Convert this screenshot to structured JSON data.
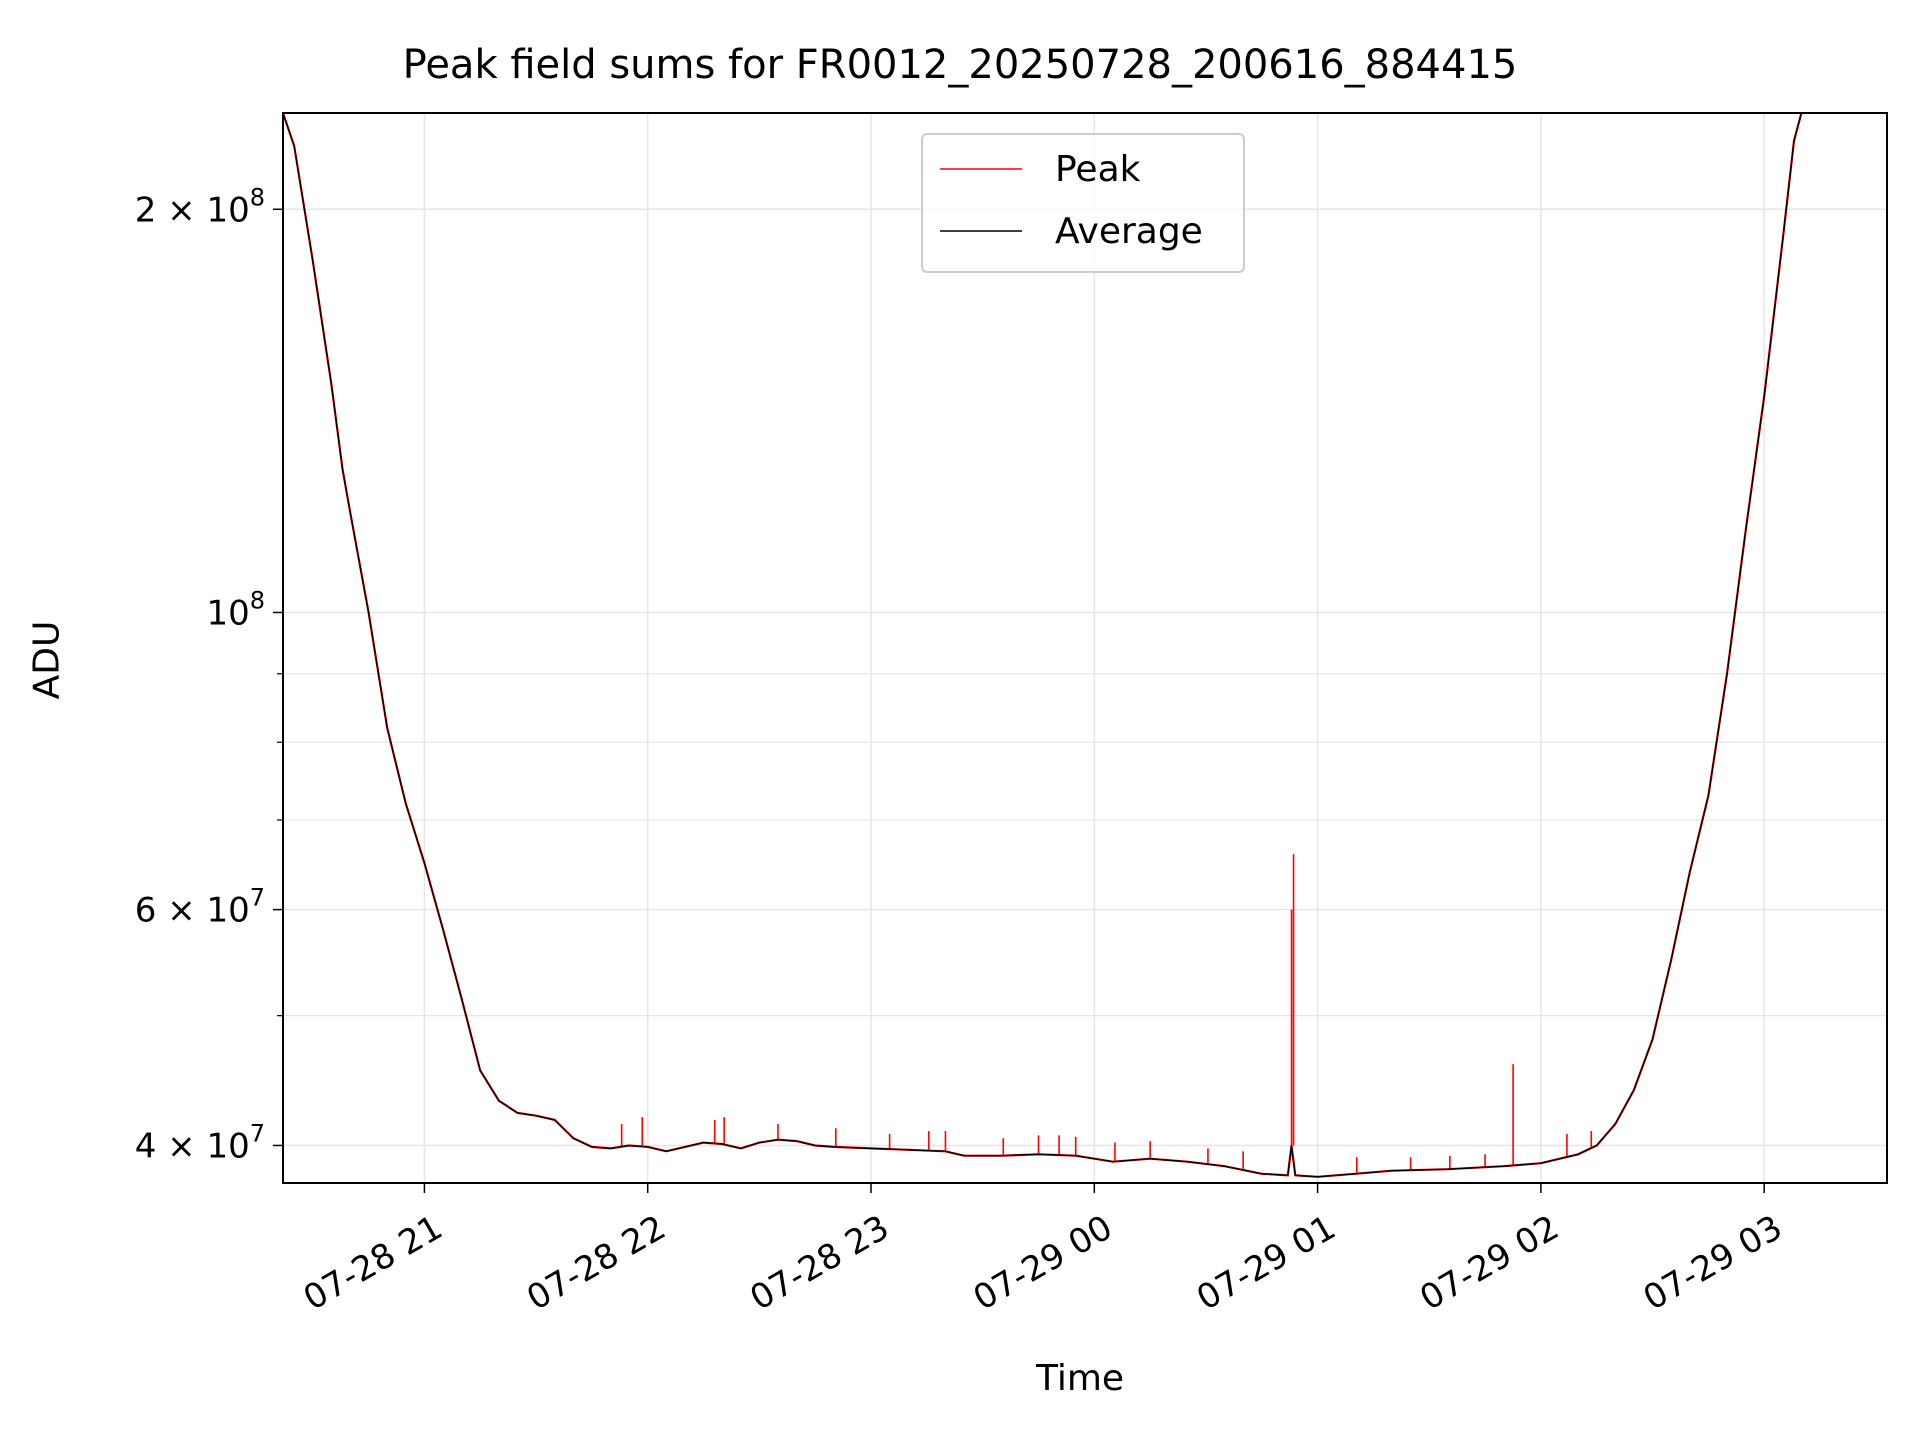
{
  "chart_data": {
    "type": "line",
    "title": "Peak field sums for FR0012_20250728_200616_884415",
    "xlabel": "Time",
    "ylabel": "ADU",
    "y_scale": "log",
    "grid": true,
    "legend_position": "top-center",
    "xlim": [
      "2025-07-28 20:22",
      "2025-07-29 03:33"
    ],
    "ylim": [
      37500000,
      236000000
    ],
    "x_ticks": [
      {
        "t": "2025-07-28 21:00",
        "label": "07-28 21"
      },
      {
        "t": "2025-07-28 22:00",
        "label": "07-28 22"
      },
      {
        "t": "2025-07-28 23:00",
        "label": "07-28 23"
      },
      {
        "t": "2025-07-29 00:00",
        "label": "07-29 00"
      },
      {
        "t": "2025-07-29 01:00",
        "label": "07-29 01"
      },
      {
        "t": "2025-07-29 02:00",
        "label": "07-29 02"
      },
      {
        "t": "2025-07-29 03:00",
        "label": "07-29 03"
      }
    ],
    "y_ticks": [
      {
        "value": 40000000,
        "label": "4 × 10",
        "exp": "7"
      },
      {
        "value": 60000000,
        "label": "6 × 10",
        "exp": "7"
      },
      {
        "value": 100000000,
        "label": "10",
        "exp": "8"
      },
      {
        "value": 200000000,
        "label": "2 × 10",
        "exp": "8"
      }
    ],
    "y_minor_ticks": [
      50000000,
      70000000,
      80000000,
      90000000
    ],
    "series": [
      {
        "name": "Average",
        "color": "#000000",
        "points": [
          [
            "2025-07-28 20:22",
            236000000
          ],
          [
            "2025-07-28 20:25",
            223000000
          ],
          [
            "2025-07-28 20:30",
            183000000
          ],
          [
            "2025-07-28 20:35",
            148000000
          ],
          [
            "2025-07-28 20:38",
            128000000
          ],
          [
            "2025-07-28 20:40",
            119000000
          ],
          [
            "2025-07-28 20:45",
            100000000
          ],
          [
            "2025-07-28 20:50",
            82000000
          ],
          [
            "2025-07-28 20:55",
            72000000
          ],
          [
            "2025-07-28 21:00",
            65000000
          ],
          [
            "2025-07-28 21:05",
            58000000
          ],
          [
            "2025-07-28 21:10",
            51500000
          ],
          [
            "2025-07-28 21:15",
            45500000
          ],
          [
            "2025-07-28 21:20",
            43200000
          ],
          [
            "2025-07-28 21:25",
            42300000
          ],
          [
            "2025-07-28 21:30",
            42100000
          ],
          [
            "2025-07-28 21:35",
            41800000
          ],
          [
            "2025-07-28 21:40",
            40500000
          ],
          [
            "2025-07-28 21:45",
            39900000
          ],
          [
            "2025-07-28 21:50",
            39800000
          ],
          [
            "2025-07-28 21:55",
            40000000
          ],
          [
            "2025-07-28 22:00",
            39900000
          ],
          [
            "2025-07-28 22:05",
            39600000
          ],
          [
            "2025-07-28 22:10",
            39900000
          ],
          [
            "2025-07-28 22:15",
            40200000
          ],
          [
            "2025-07-28 22:20",
            40100000
          ],
          [
            "2025-07-28 22:25",
            39800000
          ],
          [
            "2025-07-28 22:30",
            40200000
          ],
          [
            "2025-07-28 22:35",
            40400000
          ],
          [
            "2025-07-28 22:40",
            40300000
          ],
          [
            "2025-07-28 22:45",
            40000000
          ],
          [
            "2025-07-28 22:50",
            39900000
          ],
          [
            "2025-07-28 23:00",
            39800000
          ],
          [
            "2025-07-28 23:10",
            39700000
          ],
          [
            "2025-07-28 23:20",
            39600000
          ],
          [
            "2025-07-28 23:25",
            39300000
          ],
          [
            "2025-07-28 23:35",
            39300000
          ],
          [
            "2025-07-28 23:45",
            39400000
          ],
          [
            "2025-07-28 23:55",
            39300000
          ],
          [
            "2025-07-29 00:05",
            38900000
          ],
          [
            "2025-07-29 00:15",
            39100000
          ],
          [
            "2025-07-29 00:25",
            38900000
          ],
          [
            "2025-07-29 00:35",
            38600000
          ],
          [
            "2025-07-29 00:45",
            38100000
          ],
          [
            "2025-07-29 00:52",
            38000000
          ],
          [
            "2025-07-29 00:53",
            40000000
          ],
          [
            "2025-07-29 00:54",
            38000000
          ],
          [
            "2025-07-29 01:00",
            37900000
          ],
          [
            "2025-07-29 01:10",
            38100000
          ],
          [
            "2025-07-29 01:20",
            38300000
          ],
          [
            "2025-07-29 01:35",
            38400000
          ],
          [
            "2025-07-29 01:50",
            38600000
          ],
          [
            "2025-07-29 02:00",
            38800000
          ],
          [
            "2025-07-29 02:10",
            39400000
          ],
          [
            "2025-07-29 02:15",
            40000000
          ],
          [
            "2025-07-29 02:20",
            41500000
          ],
          [
            "2025-07-29 02:25",
            44000000
          ],
          [
            "2025-07-29 02:30",
            48000000
          ],
          [
            "2025-07-29 02:35",
            55000000
          ],
          [
            "2025-07-29 02:40",
            64000000
          ],
          [
            "2025-07-29 02:45",
            73000000
          ],
          [
            "2025-07-29 02:50",
            90000000
          ],
          [
            "2025-07-29 02:55",
            115000000
          ],
          [
            "2025-07-29 03:00",
            145000000
          ],
          [
            "2025-07-29 03:05",
            190000000
          ],
          [
            "2025-07-29 03:08",
            225000000
          ],
          [
            "2025-07-29 03:10",
            236000000
          ]
        ]
      },
      {
        "name": "Peak",
        "color": "#ff0000",
        "spikes": [
          [
            "2025-07-28 21:53",
            41500000
          ],
          [
            "2025-07-28 21:58",
            42000000
          ],
          [
            "2025-07-28 22:18",
            41800000
          ],
          [
            "2025-07-28 22:20",
            42000000
          ],
          [
            "2025-07-28 22:35",
            41500000
          ],
          [
            "2025-07-28 22:50",
            41200000
          ],
          [
            "2025-07-28 23:05",
            40800000
          ],
          [
            "2025-07-28 23:15",
            41000000
          ],
          [
            "2025-07-28 23:20",
            41000000
          ],
          [
            "2025-07-28 23:35",
            40500000
          ],
          [
            "2025-07-28 23:45",
            40700000
          ],
          [
            "2025-07-28 23:50",
            40700000
          ],
          [
            "2025-07-28 23:55",
            40600000
          ],
          [
            "2025-07-29 00:05",
            40200000
          ],
          [
            "2025-07-29 00:15",
            40300000
          ],
          [
            "2025-07-29 00:30",
            39800000
          ],
          [
            "2025-07-29 00:40",
            39600000
          ],
          [
            "2025-07-29 00:53",
            66000000
          ],
          [
            "2025-07-29 00:53",
            60000000
          ],
          [
            "2025-07-29 01:10",
            39200000
          ],
          [
            "2025-07-29 01:25",
            39200000
          ],
          [
            "2025-07-29 01:35",
            39300000
          ],
          [
            "2025-07-29 01:45",
            39400000
          ],
          [
            "2025-07-29 01:52",
            46000000
          ],
          [
            "2025-07-29 02:07",
            40800000
          ],
          [
            "2025-07-29 02:13",
            41000000
          ]
        ]
      }
    ]
  }
}
